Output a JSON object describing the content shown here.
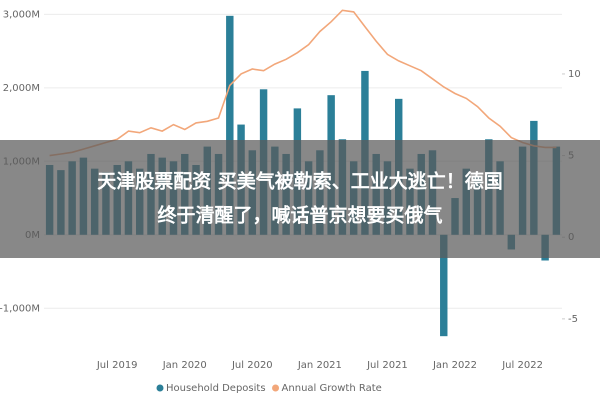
{
  "chart_data": {
    "type": "bar-line",
    "categories": [
      null,
      null,
      null,
      null,
      null,
      null,
      "Jul 2019",
      null,
      null,
      null,
      null,
      null,
      "Jan 2020",
      null,
      null,
      null,
      null,
      null,
      "Jul 2020",
      null,
      null,
      null,
      null,
      null,
      "Jan 2021",
      null,
      null,
      null,
      null,
      null,
      "Jul 2021",
      null,
      null,
      null,
      null,
      null,
      "Jan 2022",
      null,
      null,
      null,
      null,
      null,
      "Jul 2022",
      null,
      null,
      null
    ],
    "series": [
      {
        "name": "Household Deposits",
        "color": "#2b7f98",
        "type": "bar",
        "values": [
          950,
          880,
          1000,
          1050,
          900,
          850,
          950,
          1000,
          900,
          1100,
          1050,
          1000,
          1100,
          950,
          1200,
          1100,
          2980,
          1500,
          1150,
          1980,
          1200,
          1100,
          1720,
          1000,
          1150,
          1900,
          1300,
          1000,
          2230,
          1100,
          1000,
          1850,
          900,
          1100,
          1150,
          -1380,
          500,
          900,
          800,
          1300,
          1000,
          -200,
          1200,
          1550,
          -350,
          1200
        ]
      },
      {
        "name": "Annual Growth Rate",
        "color": "#f2a77a",
        "type": "line",
        "axis": "y2",
        "values": [
          5.0,
          5.1,
          5.2,
          5.4,
          5.6,
          5.8,
          6.0,
          6.5,
          6.4,
          6.7,
          6.5,
          6.9,
          6.6,
          7.0,
          7.1,
          7.3,
          9.3,
          10.0,
          10.3,
          10.2,
          10.6,
          10.9,
          11.3,
          11.8,
          12.6,
          13.2,
          13.9,
          13.8,
          12.9,
          12.0,
          11.2,
          10.8,
          10.5,
          10.2,
          9.7,
          9.2,
          8.8,
          8.5,
          8.0,
          7.3,
          6.8,
          6.1,
          5.8,
          5.6,
          5.5,
          5.5
        ]
      }
    ],
    "ylim": [
      -1500,
      3100
    ],
    "yticks": [
      {
        "value": -1000,
        "label": "-1,000M"
      },
      {
        "value": 0,
        "label": "0M"
      },
      {
        "value": 1000,
        "label": "1,000M"
      },
      {
        "value": 2000,
        "label": "2,000M"
      },
      {
        "value": 3000,
        "label": "3,000M"
      }
    ],
    "y2lim": [
      -6.6,
      14.1
    ],
    "y2ticks": [
      -5,
      0,
      5,
      10
    ],
    "grid": true
  },
  "banner": {
    "lines": [
      "天津股票配资 买美气被勒索、工业大逃亡！德国",
      "终于清醒了，喊话普京想要买俄气"
    ]
  }
}
